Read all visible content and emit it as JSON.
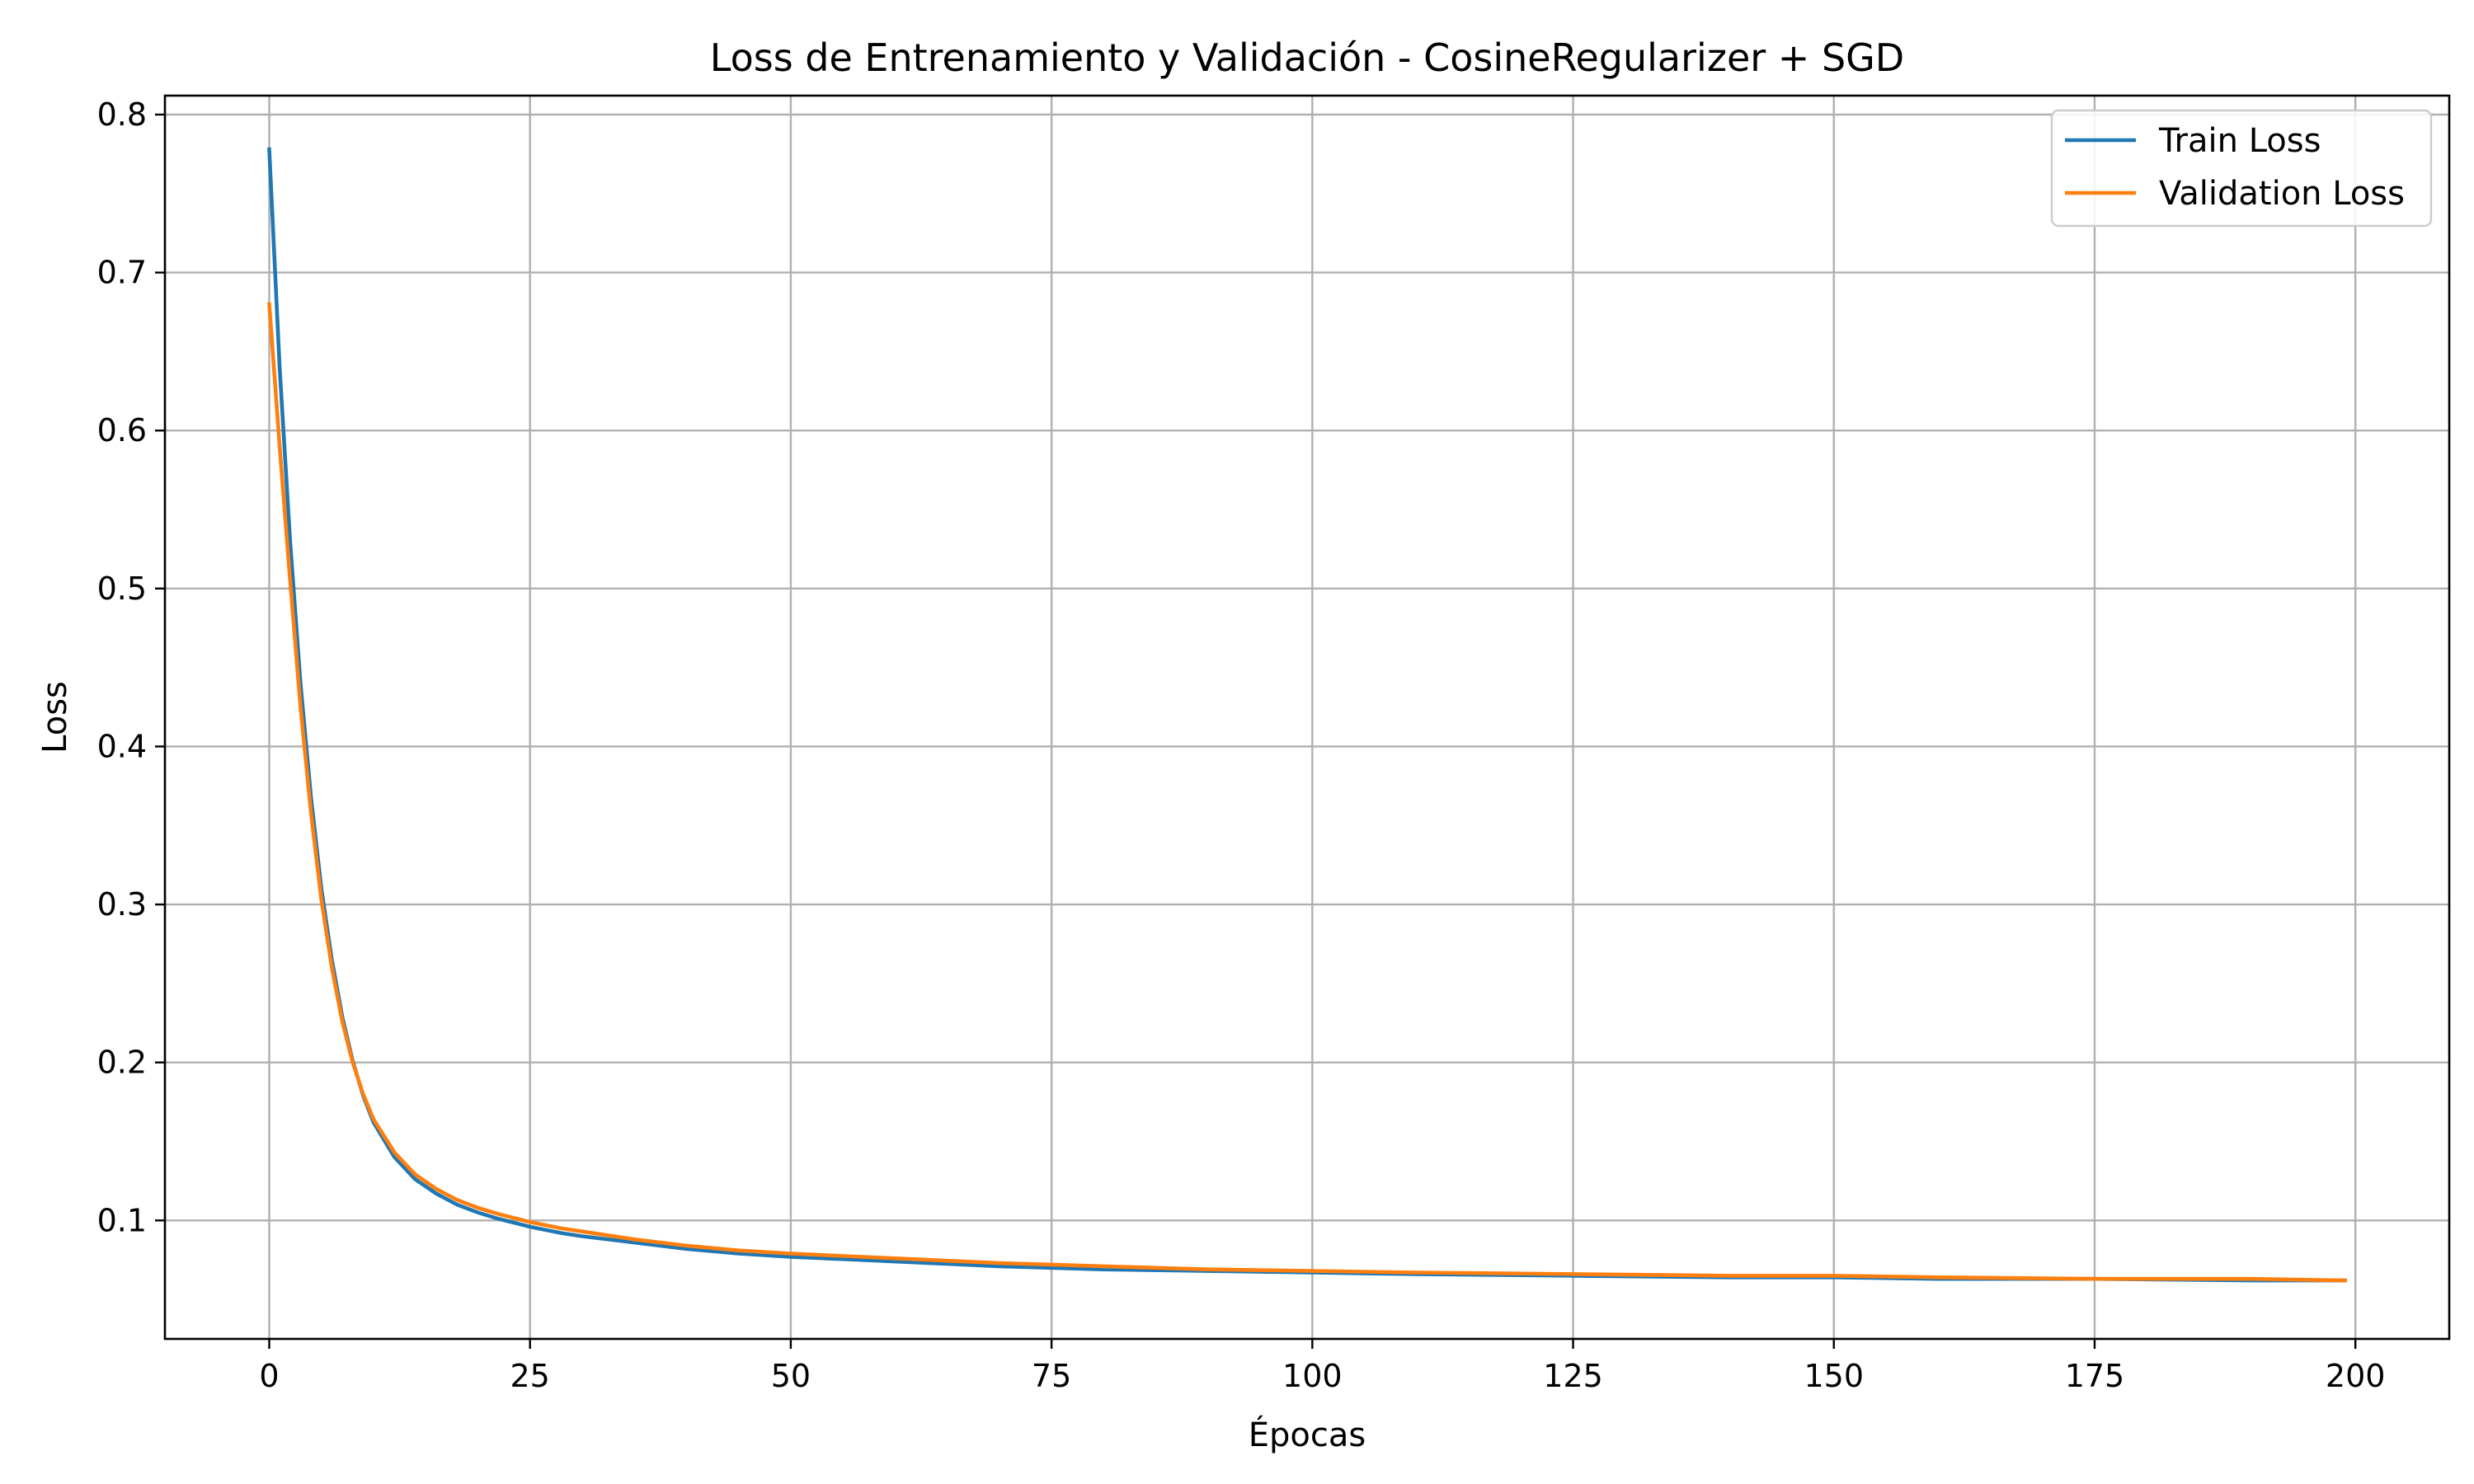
{
  "chart_data": {
    "type": "line",
    "title": "Loss de Entrenamiento y Validación - CosineRegularizer + SGD",
    "xlabel": "Épocas",
    "ylabel": "Loss",
    "xlim": [
      -10,
      209
    ],
    "ylim": [
      0.025,
      0.812
    ],
    "xticks": [
      0,
      25,
      50,
      75,
      100,
      125,
      150,
      175,
      200
    ],
    "yticks": [
      0.1,
      0.2,
      0.3,
      0.4,
      0.5,
      0.6,
      0.7,
      0.8
    ],
    "grid": true,
    "legend_position": "top-right",
    "colors": {
      "train": "#1f77b4",
      "validation": "#ff7f0e",
      "grid": "#b0b0b0"
    },
    "x": [
      0,
      1,
      2,
      3,
      4,
      5,
      6,
      7,
      8,
      9,
      10,
      12,
      14,
      16,
      18,
      20,
      22,
      25,
      28,
      30,
      35,
      40,
      45,
      50,
      60,
      70,
      75,
      80,
      90,
      100,
      110,
      125,
      140,
      150,
      160,
      175,
      190,
      199
    ],
    "series": [
      {
        "name": "Train Loss",
        "values": [
          0.778,
          0.64,
          0.53,
          0.44,
          0.368,
          0.31,
          0.265,
          0.229,
          0.201,
          0.179,
          0.162,
          0.14,
          0.126,
          0.117,
          0.11,
          0.105,
          0.101,
          0.096,
          0.092,
          0.09,
          0.086,
          0.082,
          0.079,
          0.077,
          0.074,
          0.071,
          0.07,
          0.069,
          0.068,
          0.067,
          0.066,
          0.065,
          0.064,
          0.064,
          0.063,
          0.063,
          0.062,
          0.062
        ]
      },
      {
        "name": "Validation Loss",
        "values": [
          0.68,
          0.59,
          0.505,
          0.425,
          0.358,
          0.303,
          0.26,
          0.226,
          0.2,
          0.18,
          0.164,
          0.143,
          0.129,
          0.12,
          0.113,
          0.108,
          0.104,
          0.099,
          0.095,
          0.093,
          0.088,
          0.084,
          0.081,
          0.079,
          0.076,
          0.073,
          0.072,
          0.071,
          0.069,
          0.068,
          0.067,
          0.066,
          0.065,
          0.065,
          0.064,
          0.063,
          0.063,
          0.062
        ]
      }
    ]
  }
}
